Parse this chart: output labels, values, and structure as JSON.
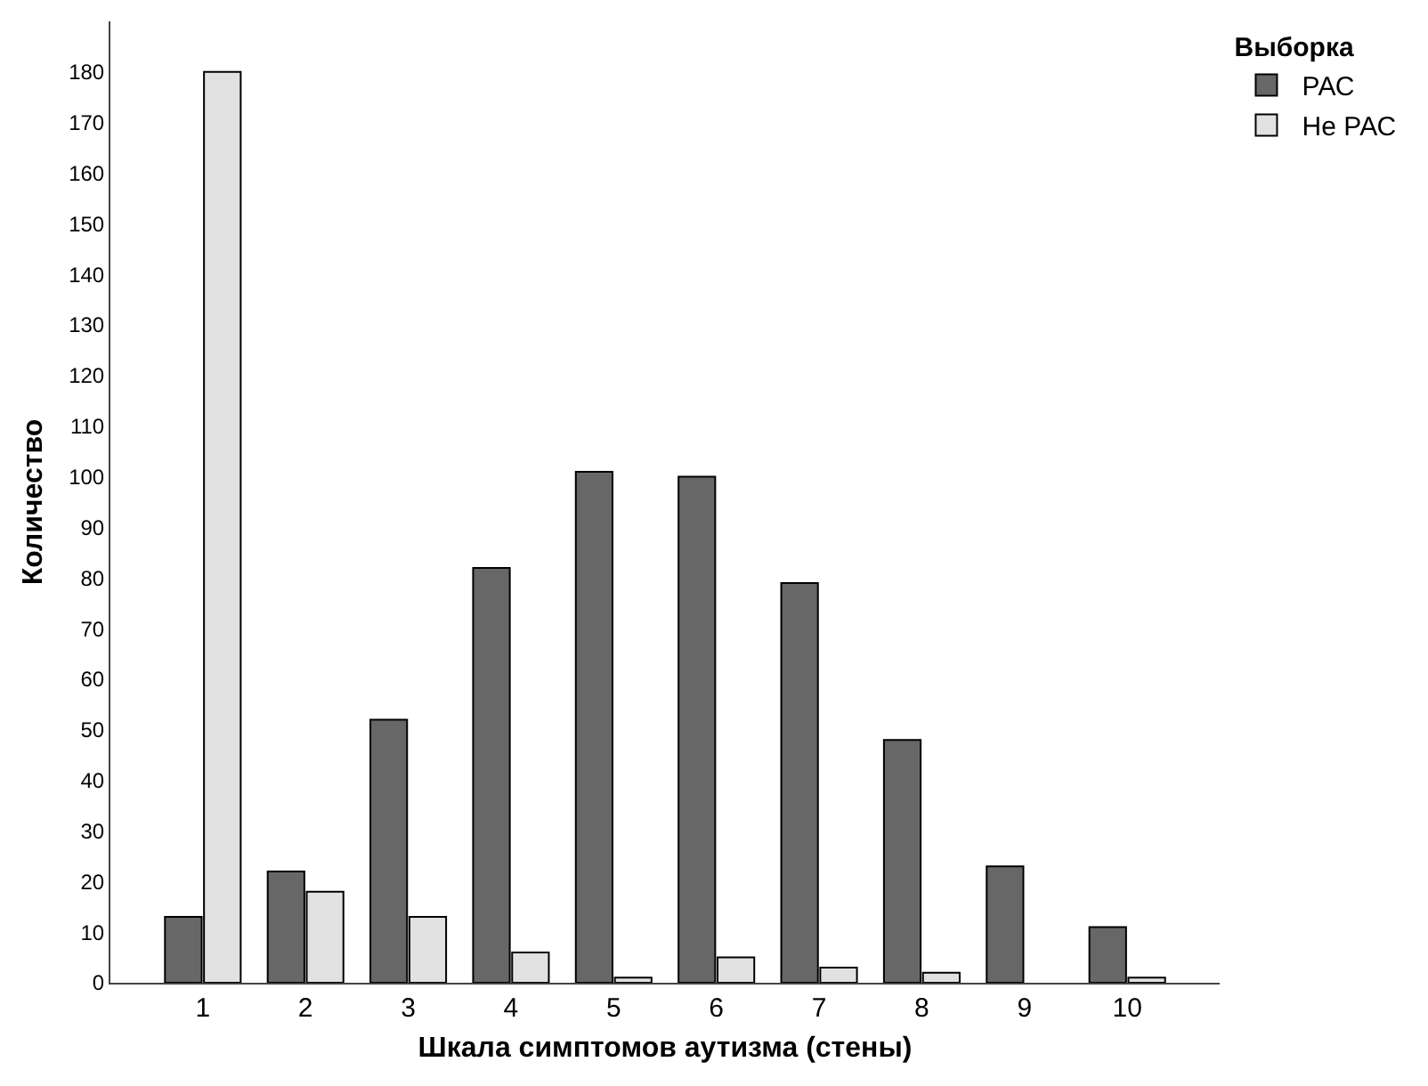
{
  "chart_data": {
    "type": "bar",
    "xlabel": "Шкала симптомов аутизма (стены)",
    "ylabel": "Количество",
    "legend_title": "Выборка",
    "categories": [
      "1",
      "2",
      "3",
      "4",
      "5",
      "6",
      "7",
      "8",
      "9",
      "10"
    ],
    "series": [
      {
        "name": "РАС",
        "color": "#676767",
        "values": [
          13,
          22,
          52,
          82,
          101,
          100,
          79,
          48,
          23,
          11
        ]
      },
      {
        "name": "Не РАС",
        "color": "#e1e1e1",
        "values": [
          180,
          18,
          13,
          6,
          1,
          5,
          3,
          2,
          0,
          1
        ]
      }
    ],
    "ylim": [
      0,
      190
    ],
    "yticks": [
      0,
      10,
      20,
      30,
      40,
      50,
      60,
      70,
      80,
      90,
      100,
      110,
      120,
      130,
      140,
      150,
      160,
      170,
      180
    ],
    "grid": false,
    "legend": "top right"
  }
}
